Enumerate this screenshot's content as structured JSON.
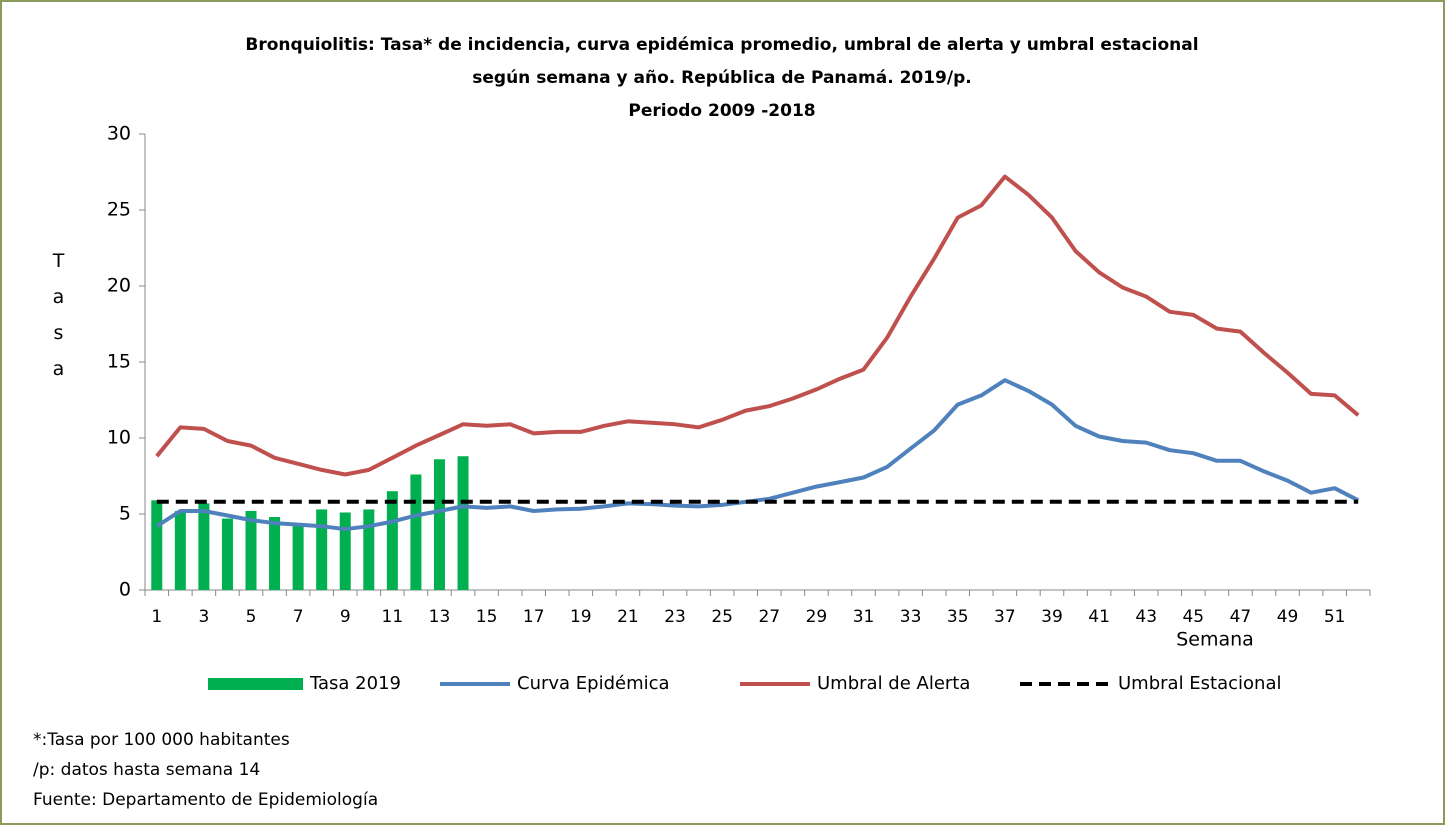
{
  "chart_data": {
    "type": "combo",
    "title": [
      "Bronquiolitis: Tasa* de incidencia, curva epidémica promedio, umbral de alerta y umbral estacional",
      "según semana y año. República de Panamá. 2019/p.",
      "Periodo 2009 -2018"
    ],
    "y_label": "Tasa",
    "x_label": "Semana",
    "categories": [
      1,
      null,
      3,
      null,
      5,
      null,
      7,
      null,
      9,
      null,
      11,
      null,
      13,
      null,
      15,
      null,
      17,
      null,
      19,
      null,
      21,
      null,
      23,
      null,
      25,
      null,
      27,
      null,
      29,
      null,
      31,
      null,
      33,
      null,
      35,
      null,
      37,
      null,
      39,
      null,
      41,
      null,
      43,
      null,
      45,
      null,
      47,
      null,
      49,
      null,
      51,
      null
    ],
    "ylim": [
      0,
      30
    ],
    "yticks": [
      0,
      5,
      10,
      15,
      20,
      25,
      30
    ],
    "series": [
      {
        "name": "Tasa 2019",
        "type": "bar",
        "color": "#00b050",
        "values": [
          5.9,
          5.2,
          5.7,
          4.7,
          5.2,
          4.8,
          4.2,
          5.3,
          5.1,
          5.3,
          6.5,
          7.6,
          8.6,
          8.8,
          null,
          null,
          null,
          null,
          null,
          null,
          null,
          null,
          null,
          null,
          null,
          null,
          null,
          null,
          null,
          null,
          null,
          null,
          null,
          null,
          null,
          null,
          null,
          null,
          null,
          null,
          null,
          null,
          null,
          null,
          null,
          null,
          null,
          null,
          null,
          null,
          null,
          null
        ]
      },
      {
        "name": "Curva Epidémica",
        "type": "line",
        "color": "#4f81bd",
        "values": [
          4.2,
          5.2,
          5.2,
          4.9,
          4.6,
          4.4,
          4.3,
          4.2,
          4.0,
          4.2,
          4.5,
          4.9,
          5.2,
          5.5,
          5.4,
          5.5,
          5.2,
          5.3,
          5.35,
          5.5,
          5.7,
          5.65,
          5.55,
          5.5,
          5.6,
          5.8,
          6.0,
          6.4,
          6.8,
          7.1,
          7.4,
          8.1,
          9.3,
          10.5,
          12.2,
          12.8,
          13.8,
          13.1,
          12.2,
          10.8,
          10.1,
          9.8,
          9.7,
          9.2,
          9.0,
          8.5,
          8.5,
          7.8,
          7.2,
          6.4,
          6.7,
          5.9
        ]
      },
      {
        "name": "Umbral de Alerta",
        "type": "line",
        "color": "#c0504d",
        "values": [
          8.8,
          10.7,
          10.6,
          9.8,
          9.5,
          8.7,
          8.3,
          7.9,
          7.6,
          7.9,
          8.7,
          9.5,
          10.2,
          10.9,
          10.8,
          10.9,
          10.3,
          10.4,
          10.4,
          10.8,
          11.1,
          11.0,
          10.9,
          10.7,
          11.2,
          11.8,
          12.1,
          12.6,
          13.2,
          13.9,
          14.5,
          16.6,
          19.3,
          21.8,
          24.5,
          25.3,
          27.2,
          26.0,
          24.5,
          22.3,
          20.9,
          19.9,
          19.3,
          18.3,
          18.1,
          17.2,
          17.0,
          15.6,
          14.3,
          12.9,
          12.8,
          11.5
        ]
      },
      {
        "name": "Umbral Estacional",
        "type": "line",
        "dashed": true,
        "color": "#000000",
        "values": [
          5.8,
          5.8,
          5.8,
          5.8,
          5.8,
          5.8,
          5.8,
          5.8,
          5.8,
          5.8,
          5.8,
          5.8,
          5.8,
          5.8,
          5.8,
          5.8,
          5.8,
          5.8,
          5.8,
          5.8,
          5.8,
          5.8,
          5.8,
          5.8,
          5.8,
          5.8,
          5.8,
          5.8,
          5.8,
          5.8,
          5.8,
          5.8,
          5.8,
          5.8,
          5.8,
          5.8,
          5.8,
          5.8,
          5.8,
          5.8,
          5.8,
          5.8,
          5.8,
          5.8,
          5.8,
          5.8,
          5.8,
          5.8,
          5.8,
          5.8,
          5.8,
          5.8
        ]
      }
    ],
    "notes": [
      "*:Tasa por 100 000 habitantes",
      "/p: datos hasta semana  14",
      "Fuente: Departamento de Epidemiología"
    ]
  }
}
